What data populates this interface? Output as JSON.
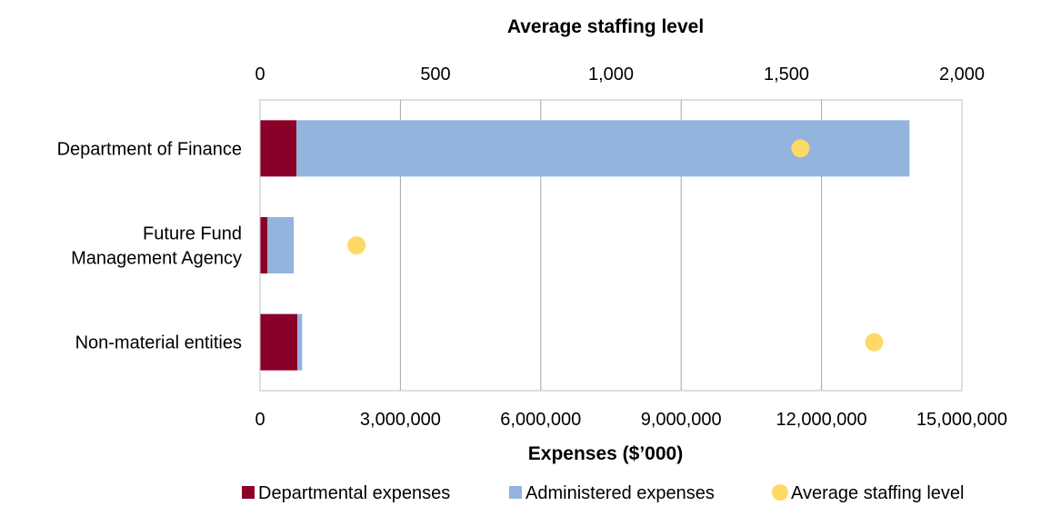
{
  "chart_data": {
    "type": "bar",
    "orientation": "horizontal",
    "stacked": true,
    "categories": [
      [
        "Department of Finance"
      ],
      [
        "Future Fund",
        "Management Agency"
      ],
      [
        "Non-material entities"
      ]
    ],
    "series": [
      {
        "name": "Departmental expenses",
        "axis": "bottom",
        "color": "#8B0029",
        "values": [
          780000,
          160000,
          800000
        ]
      },
      {
        "name": "Administered expenses",
        "axis": "bottom",
        "color": "#92B4DD",
        "values": [
          13100000,
          560000,
          100000
        ]
      },
      {
        "name": "Average staffing level",
        "axis": "top",
        "type": "scatter",
        "color": "#FFD966",
        "values": [
          1540,
          275,
          1750
        ]
      }
    ],
    "x_bottom": {
      "label": "Expenses ($’000)",
      "range": [
        0,
        15000000
      ],
      "ticks": [
        0,
        3000000,
        6000000,
        9000000,
        12000000,
        15000000
      ],
      "tick_labels": [
        "0",
        "3,000,000",
        "6,000,000",
        "9,000,000",
        "12,000,000",
        "15,000,000"
      ]
    },
    "x_top": {
      "label": "Average staffing level",
      "range": [
        0,
        2000
      ],
      "ticks": [
        0,
        500,
        1000,
        1500,
        2000
      ],
      "tick_labels": [
        "0",
        "500",
        "1,000",
        "1,500",
        "2,000"
      ]
    },
    "gridlines": "vertical",
    "legend_position": "bottom"
  }
}
